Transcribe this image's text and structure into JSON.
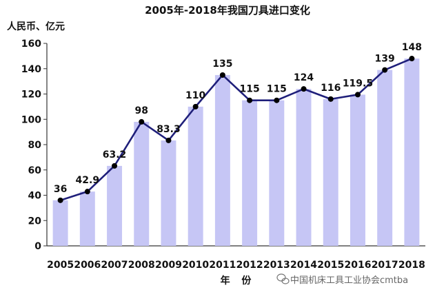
{
  "chart_data": {
    "type": "bar",
    "title": "2005年-2018年我国刀具进口变化",
    "ylabel": "人民币、亿元",
    "xlabel": "年 份",
    "categories": [
      "2005",
      "2006",
      "2007",
      "2008",
      "2009",
      "2010",
      "2011",
      "2012",
      "2013",
      "2014",
      "2015",
      "2016",
      "2017",
      "2018"
    ],
    "series": [
      {
        "type": "bar",
        "values": [
          36,
          42.9,
          63.2,
          98,
          83.3,
          110,
          135,
          115,
          115,
          124,
          116,
          119.5,
          139,
          148
        ]
      },
      {
        "type": "line",
        "values": [
          36,
          42.9,
          63.2,
          98,
          83.3,
          110,
          135,
          115,
          115,
          124,
          116,
          119.5,
          139,
          148
        ]
      }
    ],
    "data_labels": [
      "36",
      "42.9",
      "63.2",
      "98",
      "83.3",
      "110",
      "135",
      "115",
      "115",
      "124",
      "116",
      "119.5",
      "139",
      "148"
    ],
    "ylim": [
      0,
      160
    ],
    "yticks": [
      "0",
      "20",
      "40",
      "60",
      "80",
      "100",
      "120",
      "140",
      "160"
    ],
    "grid": false,
    "legend": "none",
    "colors": {
      "bar": "#c6c6f5",
      "line": "#1f1f7a",
      "marker": "#000000"
    }
  },
  "watermark": {
    "text": "中国机床工具工业协会cmtba",
    "icon": "wechat-icon"
  }
}
